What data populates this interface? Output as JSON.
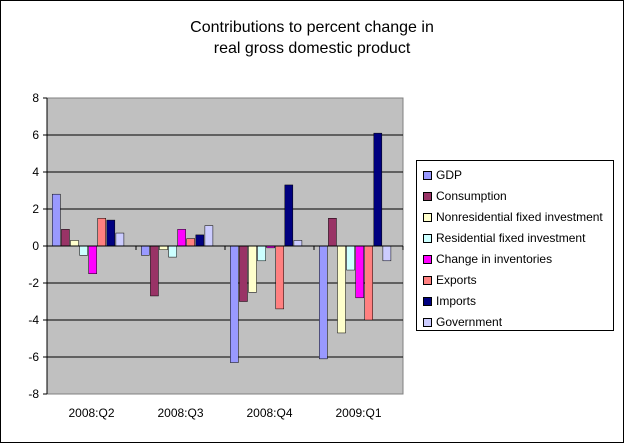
{
  "chart_data": {
    "type": "bar",
    "title": "Contributions to percent change in real gross domestic product",
    "title_lines": [
      "Contributions to percent change in",
      "real gross domestic product"
    ],
    "categories": [
      "2008:Q2",
      "2008:Q3",
      "2008:Q4",
      "2009:Q1"
    ],
    "ylim": [
      -8,
      8
    ],
    "yticks": [
      -8,
      -6,
      -4,
      -2,
      0,
      2,
      4,
      6,
      8
    ],
    "grid": true,
    "legend_position": "right",
    "plot_background": "#c0c0c0",
    "series": [
      {
        "name": "GDP",
        "color": "#9999ff",
        "values": [
          2.8,
          -0.5,
          -6.3,
          -6.1
        ]
      },
      {
        "name": "Consumption",
        "color": "#993366",
        "values": [
          0.9,
          -2.7,
          -3.0,
          1.5
        ]
      },
      {
        "name": "Nonresidential fixed investment",
        "color": "#ffffcc",
        "values": [
          0.3,
          -0.2,
          -2.5,
          -4.7
        ]
      },
      {
        "name": "Residential fixed investment",
        "color": "#ccffff",
        "values": [
          -0.5,
          -0.6,
          -0.8,
          -1.3
        ]
      },
      {
        "name": "Change in inventories",
        "color": "#ff00ff",
        "values": [
          -1.5,
          0.9,
          -0.1,
          -2.8
        ]
      },
      {
        "name": "Exports",
        "color": "#ff8080",
        "values": [
          1.5,
          0.4,
          -3.4,
          -4.0
        ]
      },
      {
        "name": "Imports",
        "color": "#000080",
        "values": [
          1.4,
          0.6,
          3.3,
          6.1
        ]
      },
      {
        "name": "Government",
        "color": "#ccccff",
        "values": [
          0.7,
          1.1,
          0.3,
          -0.8
        ]
      }
    ]
  }
}
